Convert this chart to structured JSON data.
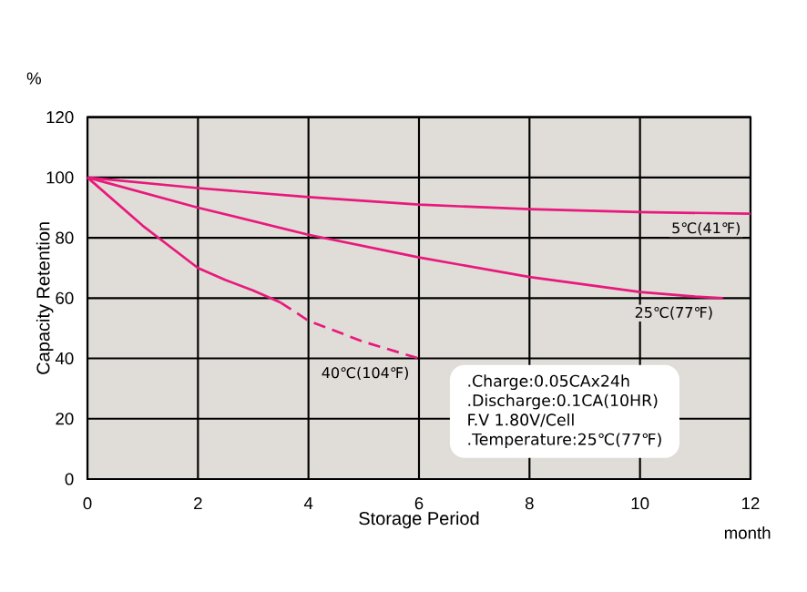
{
  "chart_data": {
    "type": "line",
    "xlabel": "Storage Period",
    "ylabel": "Capacity Retention",
    "xlim": [
      0,
      12
    ],
    "ylim": [
      0,
      120
    ],
    "xticks": [
      0,
      2,
      4,
      6,
      8,
      10,
      12
    ],
    "yticks": [
      0,
      20,
      40,
      60,
      80,
      100,
      120
    ],
    "grid": true,
    "marker": "none",
    "series": [
      {
        "name": "5℃(41℉)",
        "color": "#e8197c",
        "line_style": "solid",
        "x": [
          0,
          2,
          4,
          6,
          8,
          10,
          12
        ],
        "values": [
          100,
          96.5,
          93.5,
          91,
          89.5,
          88.5,
          88
        ]
      },
      {
        "name": "25℃(77℉)",
        "color": "#e8197c",
        "line_style": "solid",
        "x": [
          0,
          2,
          4,
          6,
          8,
          10,
          11,
          11.5
        ],
        "values": [
          100,
          90,
          81,
          73.5,
          67,
          62,
          60.5,
          60
        ]
      },
      {
        "color": "#e8197c",
        "line_style": "solid",
        "x": [
          0,
          1,
          2,
          2.5,
          3,
          3.5
        ],
        "values": [
          100,
          84,
          70,
          66,
          62.5,
          58.5
        ]
      },
      {
        "name": "40℃(104℉)",
        "color": "#e8197c",
        "line_style": "dashed",
        "x": [
          3.5,
          4,
          5,
          6
        ],
        "values": [
          58.5,
          52.5,
          45.5,
          40
        ]
      }
    ],
    "annotations": [
      "%",
      "month",
      ".Charge:0.05CAx24h",
      ".Discharge:0.1CA(10HR)",
      "F.V 1.80V/Cell",
      ".Temperature:25℃(77℉)"
    ]
  }
}
